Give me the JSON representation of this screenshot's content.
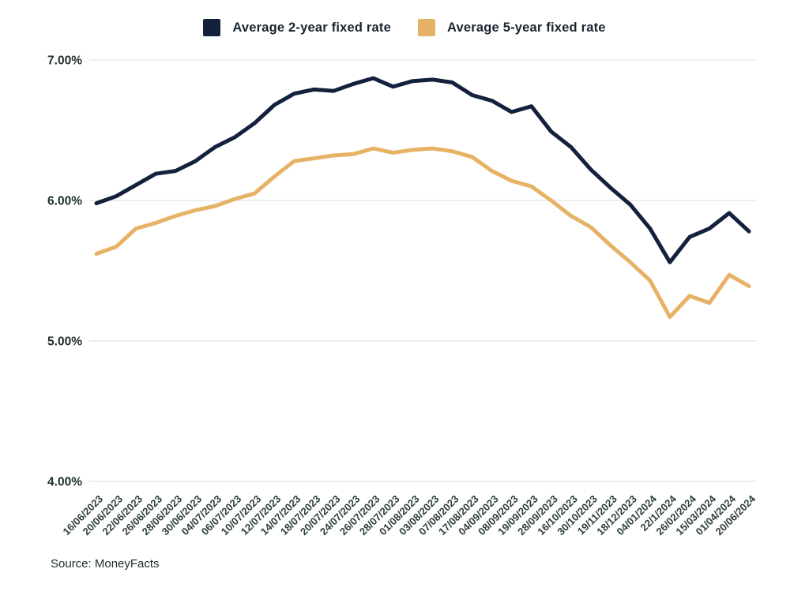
{
  "legend": [
    {
      "label": "Average 2-year fixed rate",
      "color": "#14213D"
    },
    {
      "label": "Average 5-year fixed rate",
      "color": "#E6B366"
    }
  ],
  "source": "Source: MoneyFacts",
  "colors": {
    "series_2yr": "#14213D",
    "series_5yr": "#E6B366",
    "gridline": "#E4E4E4",
    "y_tick_text": "#1F2E2E",
    "x_tick_text": "#2E3E3E"
  },
  "chart_data": {
    "type": "line",
    "title": "",
    "xlabel": "",
    "ylabel": "",
    "ylim": [
      4.0,
      7.0
    ],
    "grid": "horizontal",
    "legend_position": "top",
    "y_ticks": [
      {
        "value": 7.0,
        "label": "7.00%"
      },
      {
        "value": 6.0,
        "label": "6.00%"
      },
      {
        "value": 5.0,
        "label": "5.00%"
      },
      {
        "value": 4.0,
        "label": "4.00%"
      }
    ],
    "x_labels": [
      "16/06/2023",
      "20/06/2023",
      "22/06/2023",
      "26/06/2023",
      "28/06/2023",
      "30/06/2023",
      "04/07/2023",
      "06/07/2023",
      "10/07/2023",
      "12/07/2023",
      "14/07/2023",
      "18/07/2023",
      "20/07/2023",
      "24/07/2023",
      "26/07/2023",
      "28/07/2023",
      "01/08/2023",
      "03/08/2023",
      "07/08/2023",
      "17/08/2023",
      "04/09/2023",
      "08/09/2023",
      "19/09/2023",
      "28/09/2023",
      "16/10/2023",
      "30/10/2023",
      "19/11/2023",
      "18/12/2023",
      "04/01/2024",
      "22/1/2024",
      "26/02/2024",
      "15/03/2024",
      "01/04/2024",
      "20/06/2024"
    ],
    "series": [
      {
        "name": "Average 2-year fixed rate",
        "color": "#14213D",
        "values": [
          5.98,
          6.03,
          6.11,
          6.19,
          6.21,
          6.28,
          6.38,
          6.45,
          6.55,
          6.68,
          6.76,
          6.79,
          6.78,
          6.83,
          6.87,
          6.81,
          6.85,
          6.86,
          6.84,
          6.75,
          6.71,
          6.63,
          6.67,
          6.49,
          6.38,
          6.22,
          6.09,
          5.97,
          5.8,
          5.56,
          5.74,
          5.8,
          5.91,
          5.78
        ]
      },
      {
        "name": "Average 5-year fixed rate",
        "color": "#E6B366",
        "values": [
          5.62,
          5.67,
          5.8,
          5.84,
          5.89,
          5.93,
          5.96,
          6.01,
          6.05,
          6.17,
          6.28,
          6.3,
          6.32,
          6.33,
          6.37,
          6.34,
          6.36,
          6.37,
          6.35,
          6.31,
          6.21,
          6.14,
          6.1,
          6.0,
          5.89,
          5.81,
          5.68,
          5.56,
          5.43,
          5.17,
          5.32,
          5.27,
          5.47,
          5.39
        ]
      }
    ]
  }
}
